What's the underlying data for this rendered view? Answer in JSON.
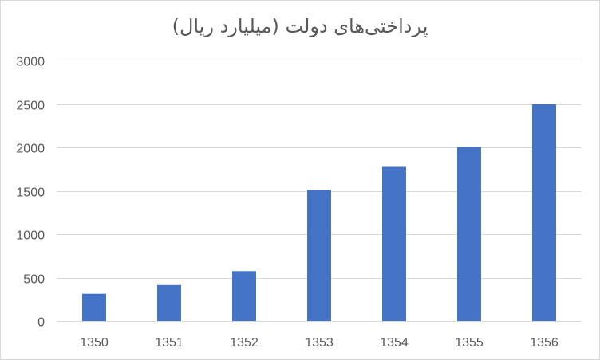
{
  "chart_data": {
    "type": "bar",
    "title": "پرداختی‌های دولت (میلیارد ریال)",
    "categories": [
      "1350",
      "1351",
      "1352",
      "1353",
      "1354",
      "1355",
      "1356"
    ],
    "values": [
      315,
      415,
      575,
      1510,
      1775,
      2005,
      2495
    ],
    "ylim": [
      0,
      3000
    ],
    "yticks": [
      0,
      500,
      1000,
      1500,
      2000,
      2500,
      3000
    ],
    "grid": true,
    "legend": "none",
    "bar_color": "#4472C4",
    "grid_color": "#D9D9D9",
    "text_color": "#595959"
  }
}
